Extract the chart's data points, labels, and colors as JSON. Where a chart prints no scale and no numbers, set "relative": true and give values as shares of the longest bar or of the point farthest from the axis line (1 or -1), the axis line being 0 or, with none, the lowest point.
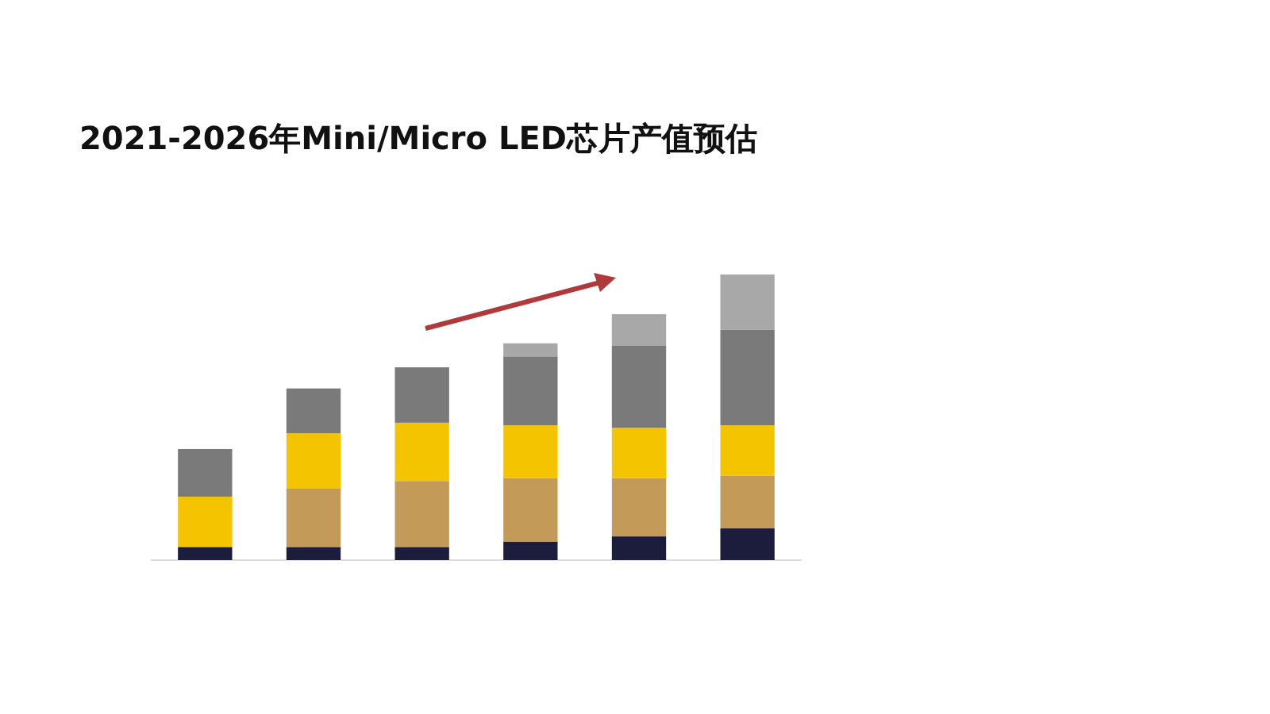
{
  "chart_data": {
    "type": "bar",
    "title": "2021-2026年Mini/Micro LED芯片产值预估",
    "relative": true,
    "stacked": true,
    "categories": [
      null,
      null,
      null,
      null,
      null,
      null
    ],
    "series": [
      {
        "color": "#1c1c3c",
        "values": [
          0.046,
          0.046,
          0.046,
          0.065,
          0.083,
          0.111
        ]
      },
      {
        "color": "#c49a58",
        "values": [
          0,
          0.204,
          0.231,
          0.222,
          0.204,
          0.185
        ]
      },
      {
        "color": "#f5c400",
        "values": [
          0.176,
          0.194,
          0.204,
          0.185,
          0.176,
          0.176
        ]
      },
      {
        "color": "#7a7a7a",
        "values": [
          0.167,
          0.157,
          0.194,
          0.241,
          0.287,
          0.334
        ]
      },
      {
        "color": "#a8a8a8",
        "values": [
          0,
          0,
          0,
          0.046,
          0.111,
          0.194
        ]
      }
    ]
  }
}
